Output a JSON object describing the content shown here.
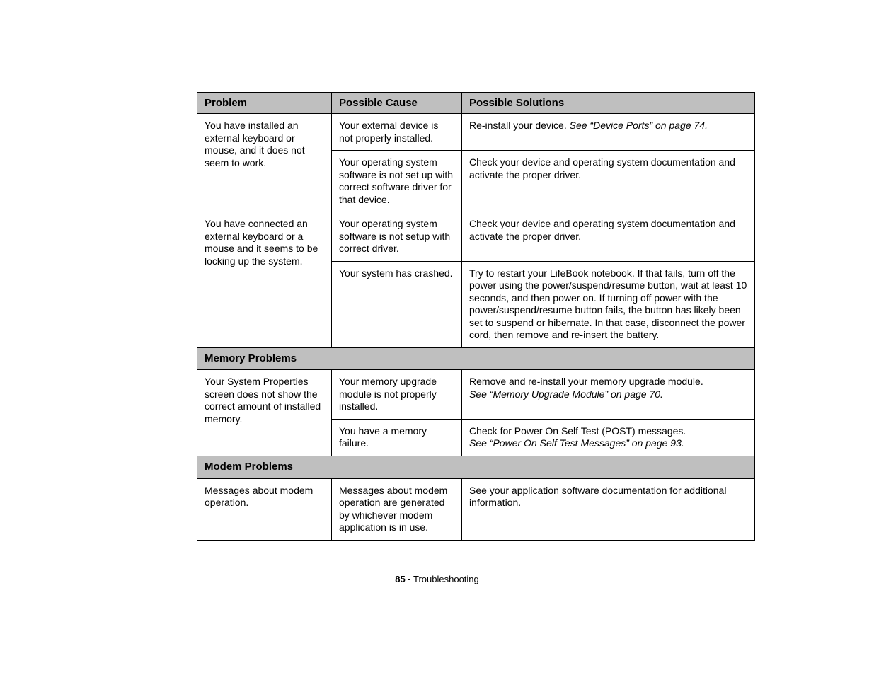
{
  "headers": {
    "problem": "Problem",
    "cause": "Possible Cause",
    "solutions": "Possible Solutions"
  },
  "rows": {
    "r1": {
      "problem": "You have installed an external keyboard or mouse, and it does not seem to work.",
      "cause1": "Your external device is not properly installed.",
      "sol1_a": "Re-install your device. ",
      "sol1_b": "See “Device Ports” on page 74.",
      "cause2": "Your operating system software is not set up with correct software driver for that device.",
      "sol2": "Check your device and operating system documentation and activate the proper driver."
    },
    "r2": {
      "problem": "You have connected an external keyboard or a mouse and it seems to be locking up the system.",
      "cause1": "Your operating system software is not setup with correct driver.",
      "sol1": "Check your device and operating system documentation and activate the proper driver.",
      "cause2": "Your system has crashed.",
      "sol2": "Try to restart your LifeBook notebook. If that fails, turn off the power using the power/suspend/resume button, wait at least 10 seconds, and then power on. If turning off power with the power/suspend/resume button fails, the button has likely been set to suspend or hibernate. In that case, disconnect the power cord, then remove and re-insert the battery."
    },
    "section_memory": "Memory Problems",
    "r3": {
      "problem": "Your System Properties screen does not show the correct amount of installed memory.",
      "cause1": "Your memory upgrade module is not properly installed.",
      "sol1_a": "Remove and re-install your memory upgrade module.",
      "sol1_b": "See “Memory Upgrade Module” on page 70.",
      "cause2": "You have a memory failure.",
      "sol2_a": "Check for Power On Self Test (POST) messages.",
      "sol2_b": "See “Power On Self Test Messages” on page 93."
    },
    "section_modem": "Modem Problems",
    "r4": {
      "problem": "Messages about modem operation.",
      "cause1": "Messages about modem operation are generated by whichever modem application is in use.",
      "sol1": "See your application software documentation for additional information."
    }
  },
  "footer": {
    "page": "85",
    "sep": " - ",
    "title": "Troubleshooting"
  }
}
